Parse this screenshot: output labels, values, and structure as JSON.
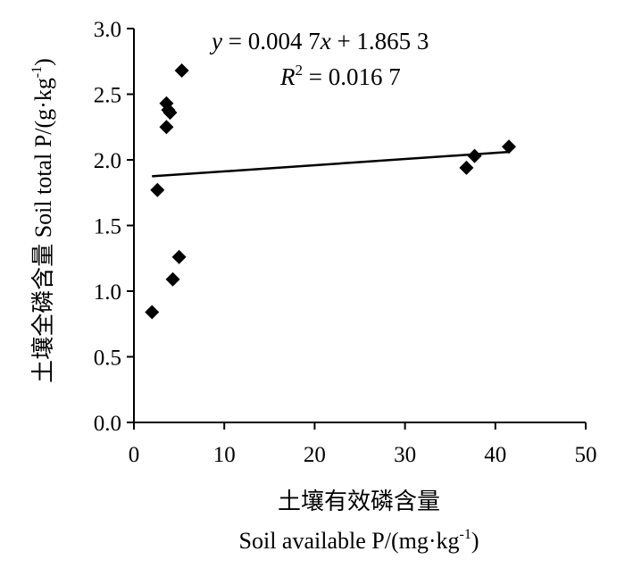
{
  "chart_data": {
    "type": "scatter",
    "x": [
      2.0,
      2.6,
      3.6,
      3.6,
      4.0,
      4.3,
      5.0,
      5.3,
      36.8,
      37.7,
      41.5,
      3.8
    ],
    "y": [
      0.84,
      1.77,
      2.25,
      2.43,
      2.36,
      1.09,
      1.26,
      2.68,
      1.94,
      2.03,
      2.1,
      2.38
    ],
    "trendline": {
      "slope": 0.0047,
      "intercept": 1.8653,
      "x_range": [
        2.0,
        41.5
      ]
    },
    "equation": {
      "y_var": "y",
      "eq_main": " = 0.004 7",
      "x_var": "x",
      "eq_tail": " + 1.865 3"
    },
    "r2": {
      "r_letter": "R",
      "power": "2",
      "value": " = 0.016 7"
    },
    "xlabel_cn": "土壤有效磷含量",
    "xlabel_en": "Soil available P/(mg·kg",
    "xlabel_en_sup": "-1",
    "xlabel_en_close": ")",
    "ylabel_cn": "土壤全磷含量 ",
    "ylabel_en": "Soil total P/(g·kg",
    "ylabel_en_sup": "-1",
    "ylabel_en_close": ")",
    "xlim": [
      0,
      50
    ],
    "ylim": [
      0,
      3.0
    ],
    "xticks": [
      0,
      10,
      20,
      30,
      40,
      50
    ],
    "xtick_labels": [
      "0",
      "10",
      "20",
      "30",
      "40",
      "50"
    ],
    "yticks": [
      0,
      0.5,
      1.0,
      1.5,
      2.0,
      2.5,
      3.0
    ],
    "ytick_labels": [
      "0.0",
      "0.5",
      "1.0",
      "1.5",
      "2.0",
      "2.5",
      "3.0"
    ],
    "grid": false,
    "marker": "diamond",
    "marker_color": "#000000"
  }
}
